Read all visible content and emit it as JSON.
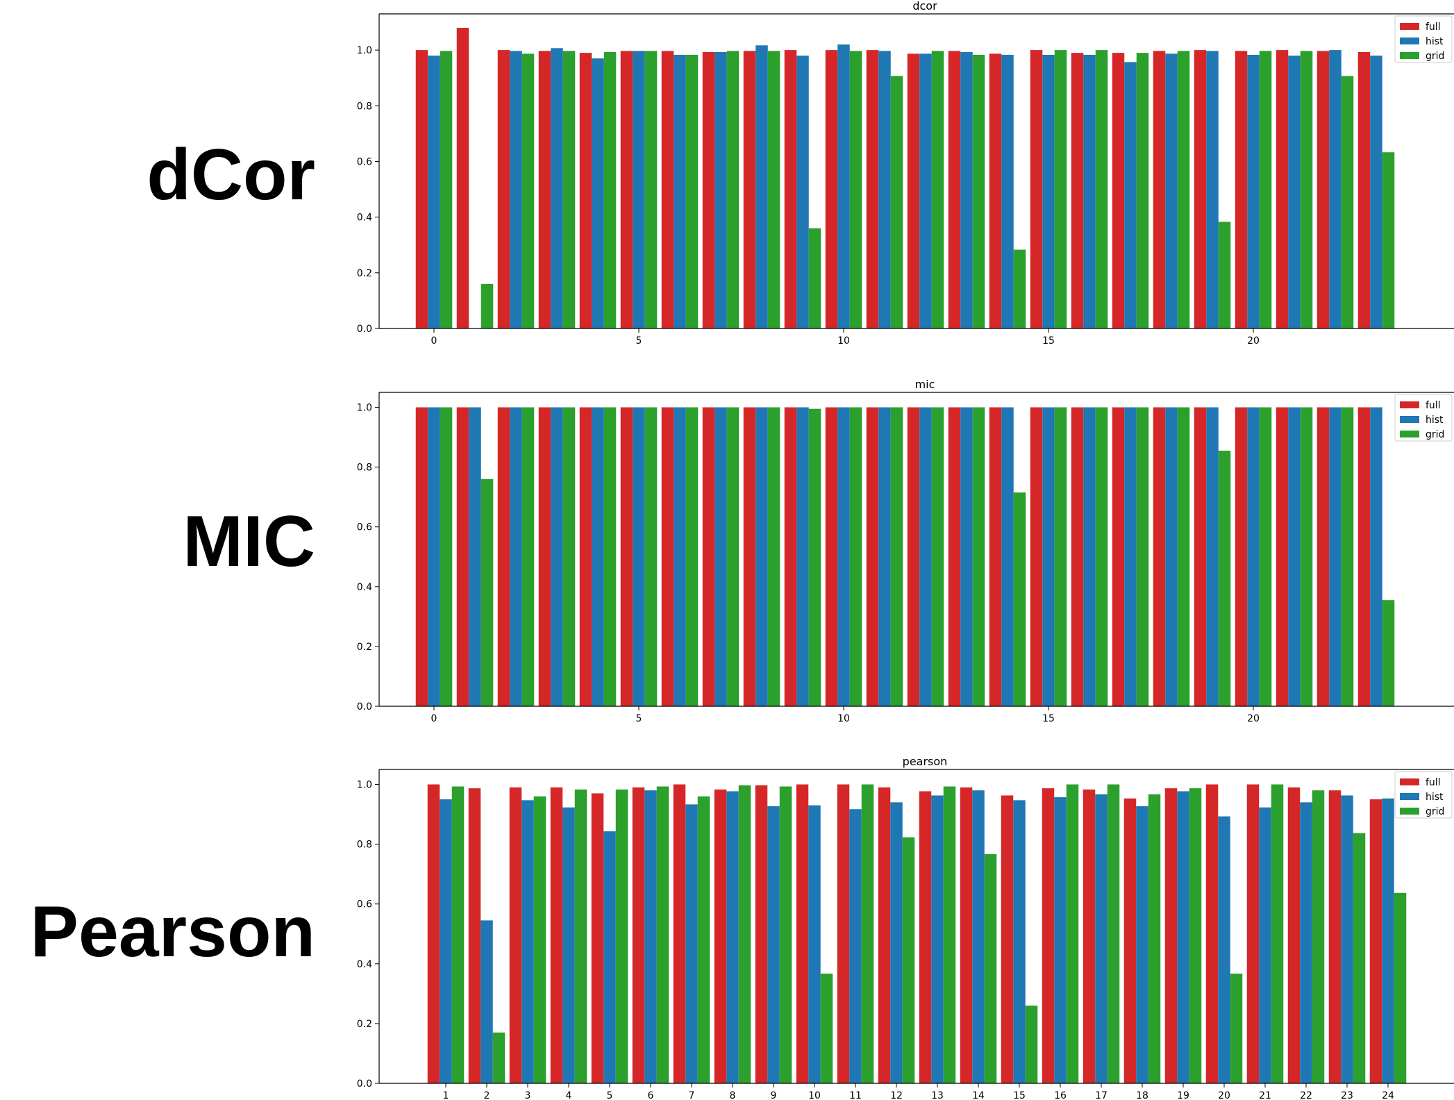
{
  "row_labels": [
    "dCor",
    "MIC",
    "Pearson"
  ],
  "colors": {
    "full": "#d62728",
    "hist": "#1f77b4",
    "grid": "#2ca02c"
  },
  "chart_data": [
    {
      "type": "bar",
      "title": "dcor",
      "xlabel": "",
      "ylabel": "",
      "ylim": [
        0,
        1.13
      ],
      "yticks": [
        "0.0",
        "0.2",
        "0.4",
        "0.6",
        "0.8",
        "1.0"
      ],
      "xticks": [
        "0",
        "5",
        "10",
        "15",
        "20"
      ],
      "categories": [
        0,
        1,
        2,
        3,
        4,
        5,
        6,
        7,
        8,
        9,
        10,
        11,
        12,
        13,
        14,
        15,
        16,
        17,
        18,
        19,
        20,
        21,
        22,
        23
      ],
      "legend": "top-right",
      "series": [
        {
          "name": "full",
          "values": [
            1.0,
            1.08,
            1.0,
            0.997,
            0.99,
            0.997,
            0.997,
            0.993,
            0.997,
            1.0,
            1.0,
            1.0,
            0.987,
            0.997,
            0.987,
            1.0,
            0.99,
            0.99,
            0.997,
            1.0,
            0.997,
            1.0,
            0.997,
            0.993
          ]
        },
        {
          "name": "hist",
          "values": [
            0.98,
            0,
            0.997,
            1.007,
            0.97,
            0.997,
            0.983,
            0.993,
            1.017,
            0.98,
            1.02,
            0.997,
            0.987,
            0.993,
            0.983,
            0.983,
            0.983,
            0.957,
            0.987,
            0.997,
            0.983,
            0.98,
            1.0,
            0.98
          ]
        },
        {
          "name": "grid",
          "values": [
            0.997,
            0.16,
            0.987,
            0.997,
            0.993,
            0.997,
            0.983,
            0.997,
            0.997,
            0.36,
            0.997,
            0.907,
            0.997,
            0.983,
            0.283,
            1.0,
            1.0,
            0.99,
            0.997,
            0.383,
            0.997,
            0.997,
            0.907,
            0.633
          ]
        }
      ]
    },
    {
      "type": "bar",
      "title": "mic",
      "xlabel": "",
      "ylabel": "",
      "ylim": [
        0,
        1.05
      ],
      "yticks": [
        "0.0",
        "0.2",
        "0.4",
        "0.6",
        "0.8",
        "1.0"
      ],
      "xticks": [
        "0",
        "5",
        "10",
        "15",
        "20"
      ],
      "categories": [
        0,
        1,
        2,
        3,
        4,
        5,
        6,
        7,
        8,
        9,
        10,
        11,
        12,
        13,
        14,
        15,
        16,
        17,
        18,
        19,
        20,
        21,
        22,
        23
      ],
      "legend": "top-right",
      "series": [
        {
          "name": "full",
          "values": [
            1,
            1,
            1,
            1,
            1,
            1,
            1,
            1,
            1,
            1,
            1,
            1,
            1,
            1,
            1,
            1,
            1,
            1,
            1,
            1,
            1,
            1,
            1,
            1
          ]
        },
        {
          "name": "hist",
          "values": [
            1,
            1,
            1,
            1,
            1,
            1,
            1,
            1,
            1,
            1,
            1,
            1,
            1,
            1,
            1,
            1,
            1,
            1,
            1,
            1,
            1,
            1,
            1,
            1
          ]
        },
        {
          "name": "grid",
          "values": [
            1,
            0.76,
            1,
            1,
            1,
            1,
            1,
            1,
            1,
            0.995,
            1,
            1,
            1,
            1,
            0.715,
            1,
            1,
            1,
            1,
            0.855,
            1,
            1,
            1,
            0.355
          ]
        }
      ]
    },
    {
      "type": "bar",
      "title": "pearson",
      "xlabel": "",
      "ylabel": "",
      "ylim": [
        0,
        1.05
      ],
      "yticks": [
        "0.0",
        "0.2",
        "0.4",
        "0.6",
        "0.8",
        "1.0"
      ],
      "xticks": [
        "1",
        "2",
        "3",
        "4",
        "5",
        "6",
        "7",
        "8",
        "9",
        "10",
        "11",
        "12",
        "13",
        "14",
        "15",
        "16",
        "17",
        "18",
        "19",
        "20",
        "21",
        "22",
        "23",
        "24"
      ],
      "categories": [
        1,
        2,
        3,
        4,
        5,
        6,
        7,
        8,
        9,
        10,
        11,
        12,
        13,
        14,
        15,
        16,
        17,
        18,
        19,
        20,
        21,
        22,
        23,
        24
      ],
      "legend": "top-right",
      "series": [
        {
          "name": "full",
          "values": [
            1.0,
            0.987,
            0.99,
            0.99,
            0.97,
            0.99,
            1.0,
            0.983,
            0.997,
            1.0,
            1.0,
            0.99,
            0.977,
            0.99,
            0.963,
            0.987,
            0.983,
            0.953,
            0.987,
            1.0,
            1.0,
            0.99,
            0.98,
            0.95
          ]
        },
        {
          "name": "hist",
          "values": [
            0.95,
            0.545,
            0.947,
            0.923,
            0.843,
            0.98,
            0.933,
            0.977,
            0.927,
            0.93,
            0.917,
            0.94,
            0.963,
            0.98,
            0.947,
            0.957,
            0.967,
            0.927,
            0.977,
            0.893,
            0.923,
            0.94,
            0.963,
            0.953
          ]
        },
        {
          "name": "grid",
          "values": [
            0.993,
            0.17,
            0.96,
            0.983,
            0.983,
            0.993,
            0.96,
            0.997,
            0.993,
            0.367,
            1.0,
            0.823,
            0.993,
            0.767,
            0.26,
            1.0,
            1.0,
            0.967,
            0.987,
            0.367,
            1.0,
            0.98,
            0.837,
            0.637
          ]
        }
      ]
    }
  ]
}
